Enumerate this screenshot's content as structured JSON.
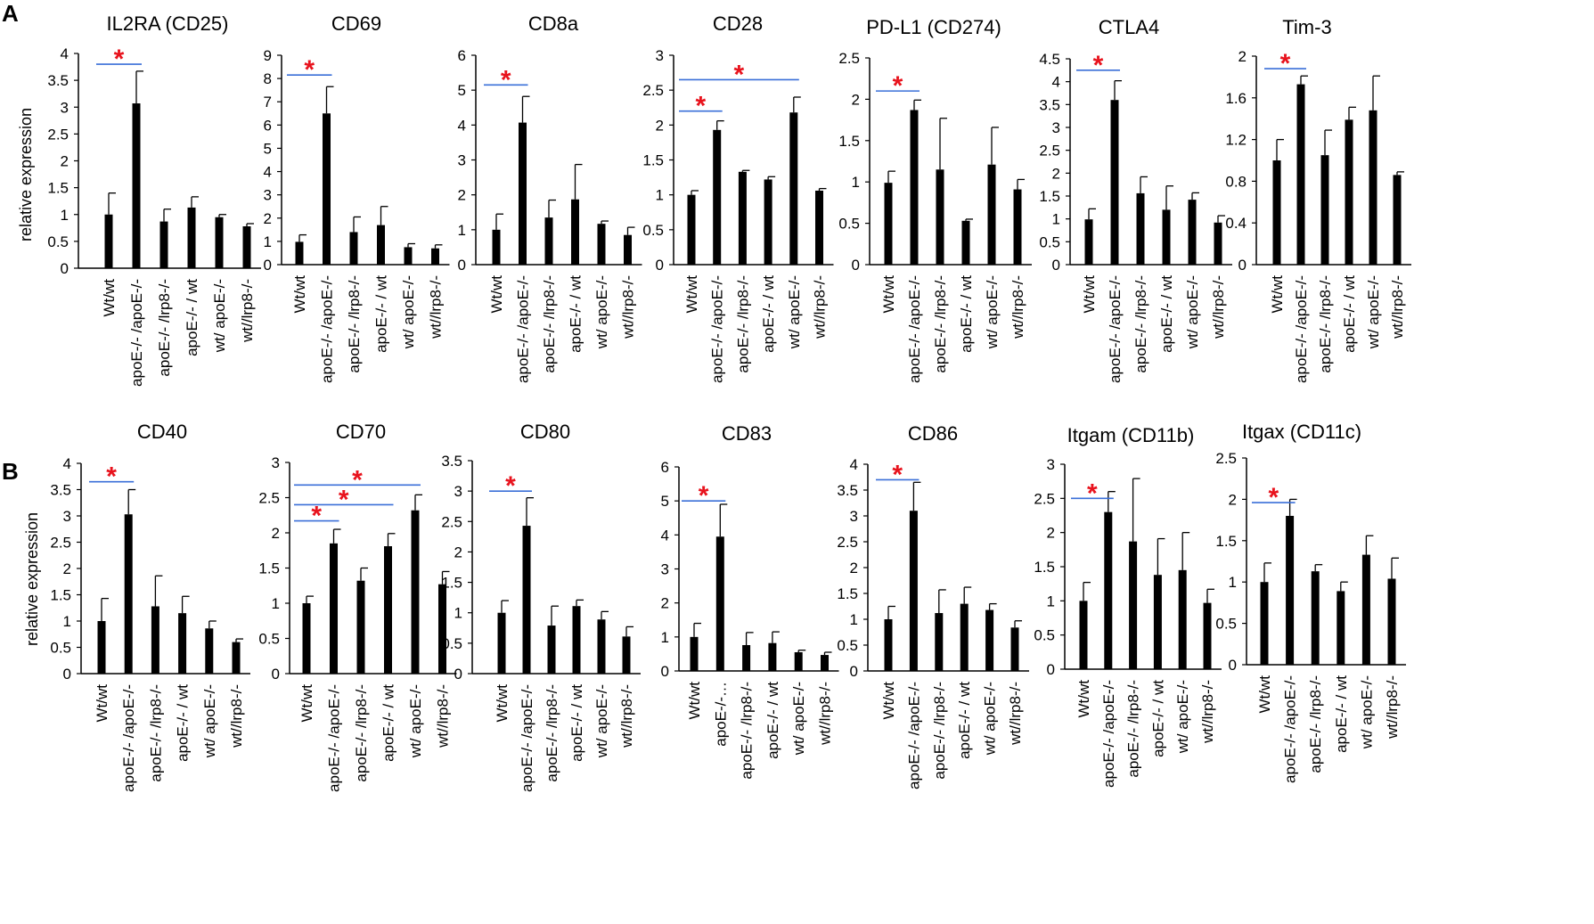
{
  "panels": [
    {
      "letter": "A",
      "ylabel": "relative expression"
    },
    {
      "letter": "B",
      "ylabel": "relative expression"
    }
  ],
  "colors": {
    "bar": "#000000",
    "axis": "#000000",
    "significance_line": "#3a6fd8",
    "significance_star": "#e8131d"
  },
  "chart_data": [
    {
      "type": "bar",
      "panel": "A",
      "title": "IL2RA (CD25)",
      "ylabel": "relative expression",
      "ylim": [
        0,
        4
      ],
      "yticks": [
        "0",
        "0.5",
        "1",
        "1.5",
        "2",
        "2.5",
        "3",
        "3.5",
        "4"
      ],
      "categories": [
        "Wt/wt",
        "apoE-/- /apoE-/-",
        "apoE-/- /lrp8-/-",
        "apoE-/- / wt",
        "wt/ apoE-/-",
        "wt//lrp8-/-"
      ],
      "values": [
        1.0,
        3.07,
        0.87,
        1.13,
        0.95,
        0.78
      ],
      "errors": [
        0.4,
        0.6,
        0.23,
        0.2,
        0.05,
        0.05
      ],
      "significance": [
        {
          "from": 0,
          "to": 1,
          "symbol": "*",
          "y": 3.8
        }
      ]
    },
    {
      "type": "bar",
      "panel": "A",
      "title": "CD69",
      "ylabel": "",
      "ylim": [
        0,
        9
      ],
      "yticks": [
        "0",
        "1",
        "2",
        "3",
        "4",
        "5",
        "6",
        "7",
        "8",
        "9"
      ],
      "categories": [
        "Wt/wt",
        "apoE-/- /apoE-/-",
        "apoE-/- /lrp8-/-",
        "apoE-/- / wt",
        "wt/ apoE-/-",
        "wt//lrp8-/-"
      ],
      "values": [
        0.98,
        6.5,
        1.4,
        1.7,
        0.75,
        0.7
      ],
      "errors": [
        0.3,
        1.15,
        0.65,
        0.8,
        0.15,
        0.15
      ],
      "significance": [
        {
          "from": 0,
          "to": 1,
          "symbol": "*",
          "y": 8.15
        }
      ]
    },
    {
      "type": "bar",
      "panel": "A",
      "title": "CD8a",
      "ylabel": "",
      "ylim": [
        0,
        6
      ],
      "yticks": [
        "0",
        "1",
        "2",
        "3",
        "4",
        "5",
        "6"
      ],
      "categories": [
        "Wt/wt",
        "apoE-/- /apoE-/-",
        "apoE-/- /lrp8-/-",
        "apoE-/- / wt",
        "wt/ apoE-/-",
        "wt//lrp8-/-"
      ],
      "values": [
        1.0,
        4.07,
        1.35,
        1.87,
        1.17,
        0.85
      ],
      "errors": [
        0.45,
        0.75,
        0.5,
        1.0,
        0.08,
        0.22
      ],
      "significance": [
        {
          "from": 0,
          "to": 1,
          "symbol": "*",
          "y": 5.15
        }
      ]
    },
    {
      "type": "bar",
      "panel": "A",
      "title": "CD28",
      "ylabel": "",
      "ylim": [
        0,
        3
      ],
      "yticks": [
        "0",
        "0.5",
        "1",
        "1.5",
        "2",
        "2.5",
        "3"
      ],
      "categories": [
        "Wt/wt",
        "apoE-/- /apoE-/-",
        "apoE-/- /lrp8-/-",
        "apoE-/- / wt",
        "wt/ apoE-/-",
        "wt//lrp8-/-"
      ],
      "values": [
        1.0,
        1.93,
        1.33,
        1.22,
        2.18,
        1.06
      ],
      "errors": [
        0.06,
        0.13,
        0.02,
        0.04,
        0.22,
        0.03
      ],
      "significance": [
        {
          "from": 0,
          "to": 1,
          "symbol": "*",
          "y": 2.2
        },
        {
          "from": 0,
          "to": 4,
          "symbol": "*",
          "y": 2.65
        }
      ]
    },
    {
      "type": "bar",
      "panel": "A",
      "title": "PD-L1 (CD274)",
      "ylabel": "",
      "ylim": [
        0,
        2.5
      ],
      "yticks": [
        "0",
        "0.5",
        "1",
        "1.5",
        "2",
        "2.5"
      ],
      "categories": [
        "Wt/wt",
        "apoE-/- /apoE-/-",
        "apoE-/- /lrp8-/-",
        "apoE-/- / wt",
        "wt/ apoE-/-",
        "wt//lrp8-/-"
      ],
      "values": [
        0.99,
        1.87,
        1.15,
        0.53,
        1.21,
        0.91
      ],
      "errors": [
        0.14,
        0.12,
        0.62,
        0.02,
        0.45,
        0.12
      ],
      "significance": [
        {
          "from": 0,
          "to": 1,
          "symbol": "*",
          "y": 2.1
        }
      ]
    },
    {
      "type": "bar",
      "panel": "A",
      "title": "CTLA4",
      "ylabel": "",
      "ylim": [
        0,
        4.5
      ],
      "yticks": [
        "0",
        "0.5",
        "1",
        "1.5",
        "2",
        "2.5",
        "3",
        "3.5",
        "4",
        "4.5"
      ],
      "categories": [
        "Wt/wt",
        "apoE-/- /apoE-/-",
        "apoE-/- /lrp8-/-",
        "apoE-/- / wt",
        "wt/ apoE-/-",
        "wt//lrp8-/-"
      ],
      "values": [
        0.99,
        3.6,
        1.56,
        1.2,
        1.42,
        0.92
      ],
      "errors": [
        0.23,
        0.42,
        0.36,
        0.52,
        0.15,
        0.15
      ],
      "significance": [
        {
          "from": 0,
          "to": 1,
          "symbol": "*",
          "y": 4.25
        }
      ]
    },
    {
      "type": "bar",
      "panel": "A",
      "title": "Tim-3",
      "ylabel": "",
      "ylim": [
        0,
        2
      ],
      "yticks": [
        "0",
        "0.4",
        "0.8",
        "1.2",
        "1.6",
        "2"
      ],
      "categories": [
        "Wt/wt",
        "apoE-/- /apoE-/-",
        "apoE-/- /lrp8-/-",
        "apoE-/- / wt",
        "wt/ apoE-/-",
        "wt//lrp8-/-"
      ],
      "values": [
        1.0,
        1.73,
        1.05,
        1.39,
        1.48,
        0.86
      ],
      "errors": [
        0.2,
        0.08,
        0.24,
        0.12,
        0.33,
        0.03
      ],
      "significance": [
        {
          "from": 0,
          "to": 1,
          "symbol": "*",
          "y": 1.88
        }
      ]
    },
    {
      "type": "bar",
      "panel": "B",
      "title": "CD40",
      "ylabel": "relative expression",
      "ylim": [
        0,
        4
      ],
      "yticks": [
        "0",
        "0.5",
        "1",
        "1.5",
        "2",
        "2.5",
        "3",
        "3.5",
        "4"
      ],
      "categories": [
        "Wt/wt",
        "apoE-/- /apoE-/-",
        "apoE-/- /lrp8-/-",
        "apoE-/- / wt",
        "wt/ apoE-/-",
        "wt//lrp8-/-"
      ],
      "values": [
        1.0,
        3.03,
        1.28,
        1.15,
        0.86,
        0.6
      ],
      "errors": [
        0.43,
        0.47,
        0.58,
        0.32,
        0.14,
        0.06
      ],
      "significance": [
        {
          "from": 0,
          "to": 1,
          "symbol": "*",
          "y": 3.65
        }
      ]
    },
    {
      "type": "bar",
      "panel": "B",
      "title": "CD70",
      "ylabel": "",
      "ylim": [
        0,
        3
      ],
      "yticks": [
        "0",
        "0.5",
        "1",
        "1.5",
        "2",
        "2.5",
        "3"
      ],
      "categories": [
        "Wt/wt",
        "apoE-/- /apoE-/-",
        "apoE-/- /lrp8-/-",
        "apoE-/- / wt",
        "wt/ apoE-/-",
        "wt//lrp8-/-"
      ],
      "values": [
        1.0,
        1.85,
        1.32,
        1.81,
        2.32,
        1.27
      ],
      "errors": [
        0.1,
        0.2,
        0.18,
        0.18,
        0.22,
        0.18
      ],
      "significance": [
        {
          "from": 0,
          "to": 1,
          "symbol": "*",
          "y": 2.17
        },
        {
          "from": 0,
          "to": 3,
          "symbol": "*",
          "y": 2.4
        },
        {
          "from": 0,
          "to": 4,
          "symbol": "*",
          "y": 2.68
        }
      ]
    },
    {
      "type": "bar",
      "panel": "B",
      "title": "CD80",
      "ylabel": "",
      "ylim": [
        0,
        3.5
      ],
      "yticks": [
        "0",
        "0.5",
        "1",
        "1.5",
        "2",
        "2.5",
        "3",
        "3.5"
      ],
      "categories": [
        "Wt/wt",
        "apoE-/- /apoE-/-",
        "apoE-/- /lrp8-/-",
        "apoE-/- / wt",
        "wt/ apoE-/-",
        "wt//lrp8-/-"
      ],
      "values": [
        1.0,
        2.43,
        0.79,
        1.11,
        0.89,
        0.61
      ],
      "errors": [
        0.2,
        0.46,
        0.32,
        0.1,
        0.13,
        0.16
      ],
      "significance": [
        {
          "from": 0,
          "to": 1,
          "symbol": "*",
          "y": 3.0
        }
      ]
    },
    {
      "type": "bar",
      "panel": "B",
      "title": "CD83",
      "ylabel": "",
      "ylim": [
        0,
        6
      ],
      "yticks": [
        "0",
        "1",
        "2",
        "3",
        "4",
        "5",
        "6"
      ],
      "categories": [
        "Wt/wt",
        "apoE-/-…",
        "apoE-/- /lrp8-/-",
        "apoE-/- / wt",
        "wt/ apoE-/-",
        "wt//lrp8-/-"
      ],
      "values": [
        1.0,
        3.95,
        0.76,
        0.82,
        0.55,
        0.47
      ],
      "errors": [
        0.4,
        0.95,
        0.37,
        0.33,
        0.06,
        0.08
      ],
      "significance": [
        {
          "from": 0,
          "to": 1,
          "symbol": "*",
          "y": 5.0
        }
      ]
    },
    {
      "type": "bar",
      "panel": "B",
      "title": "CD86",
      "ylabel": "",
      "ylim": [
        0,
        4
      ],
      "yticks": [
        "0",
        "0.5",
        "1",
        "1.5",
        "2",
        "2.5",
        "3",
        "3.5",
        "4"
      ],
      "categories": [
        "Wt/wt",
        "apoE-/- /apoE-/-",
        "apoE-/- /lrp8-/-",
        "apoE-/- / wt",
        "wt/ apoE-/-",
        "wt//lrp8-/-"
      ],
      "values": [
        1.0,
        3.1,
        1.12,
        1.3,
        1.18,
        0.84
      ],
      "errors": [
        0.25,
        0.55,
        0.45,
        0.32,
        0.12,
        0.13
      ],
      "significance": [
        {
          "from": 0,
          "to": 1,
          "symbol": "*",
          "y": 3.7
        }
      ]
    },
    {
      "type": "bar",
      "panel": "B",
      "title": "Itgam (CD11b)",
      "ylabel": "",
      "ylim": [
        0,
        3
      ],
      "yticks": [
        "0",
        "0.5",
        "1",
        "1.5",
        "2",
        "2.5",
        "3"
      ],
      "categories": [
        "Wt/wt",
        "apoE-/- /apoE-/-",
        "apoE-/- /lrp8-/-",
        "apoE-/- / wt",
        "wt/ apoE-/-",
        "wt//lrp8-/-"
      ],
      "values": [
        1.0,
        2.3,
        1.87,
        1.38,
        1.45,
        0.97
      ],
      "errors": [
        0.27,
        0.3,
        0.92,
        0.53,
        0.55,
        0.2
      ],
      "significance": [
        {
          "from": 0,
          "to": 1,
          "symbol": "*",
          "y": 2.5
        }
      ]
    },
    {
      "type": "bar",
      "panel": "B",
      "title": "Itgax (CD11c)",
      "ylabel": "",
      "ylim": [
        0,
        2.5
      ],
      "yticks": [
        "0",
        "0.5",
        "1",
        "1.5",
        "2",
        "2.5"
      ],
      "categories": [
        "Wt/wt",
        "apoE-/- /apoE-/-",
        "apoE-/- /lrp8-/-",
        "apoE-/- / wt",
        "wt/ apoE-/-",
        "wt//lrp8-/-"
      ],
      "values": [
        1.0,
        1.8,
        1.13,
        0.89,
        1.33,
        1.04
      ],
      "errors": [
        0.23,
        0.2,
        0.08,
        0.11,
        0.23,
        0.25
      ],
      "significance": [
        {
          "from": 0,
          "to": 1,
          "symbol": "*",
          "y": 1.96
        }
      ]
    }
  ]
}
